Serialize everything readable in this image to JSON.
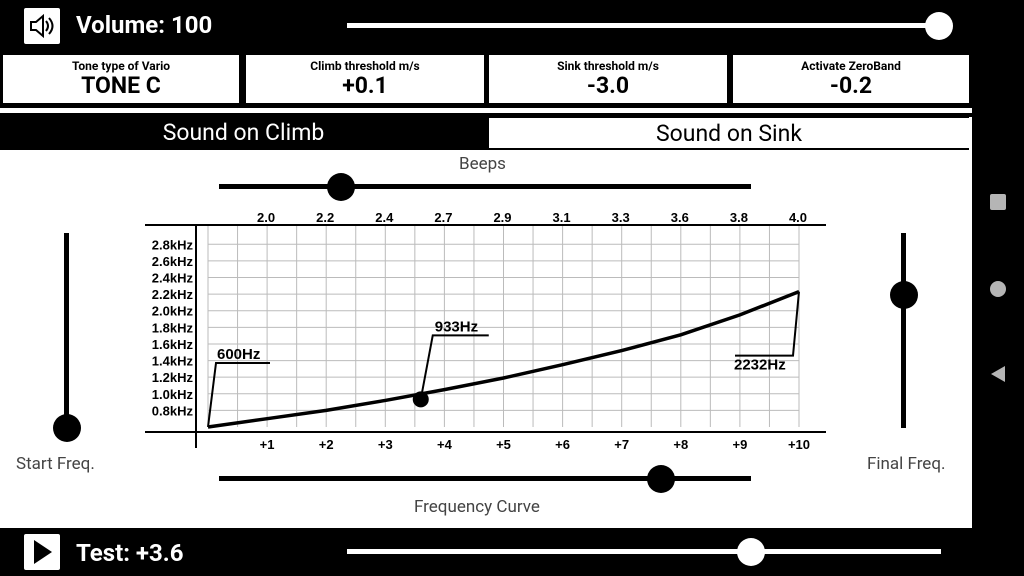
{
  "volume": {
    "label": "Volume: 100",
    "value": 100,
    "max": 100
  },
  "params": [
    {
      "label": "Tone type of Vario",
      "value": "TONE C"
    },
    {
      "label": "Climb threshold m/s",
      "value": "+0.1"
    },
    {
      "label": "Sink threshold m/s",
      "value": "-3.0"
    },
    {
      "label": "Activate ZeroBand",
      "value": "-0.2"
    }
  ],
  "tabs": {
    "climb": "Sound on Climb",
    "sink": "Sound on Sink"
  },
  "beeps": {
    "label": "Beeps",
    "position": 0.23
  },
  "frequency_curve": {
    "label": "Frequency Curve",
    "position": 0.83
  },
  "start_freq": {
    "label": "Start Freq.",
    "position": 0.0
  },
  "final_freq": {
    "label": "Final Freq.",
    "position": 0.68
  },
  "test": {
    "label": "Test: +3.6",
    "position": 0.68
  },
  "chart_data": {
    "type": "line",
    "top_ticks": [
      "2.0",
      "2.2",
      "2.4",
      "2.7",
      "2.9",
      "3.1",
      "3.3",
      "3.6",
      "3.8",
      "4.0"
    ],
    "bottom_ticks": [
      "+1",
      "+2",
      "+3",
      "+4",
      "+5",
      "+6",
      "+7",
      "+8",
      "+9",
      "+10"
    ],
    "y_ticks": [
      "0.8kHz",
      "1.0kHz",
      "1.2kHz",
      "1.4kHz",
      "1.6kHz",
      "1.8kHz",
      "2.0kHz",
      "2.2kHz",
      "2.4kHz",
      "2.6kHz",
      "2.8kHz"
    ],
    "xlim": [
      0,
      10
    ],
    "ylim": [
      0.6,
      2.9
    ],
    "curve": {
      "start_hz": 600,
      "end_hz": 2232,
      "x": [
        0,
        1,
        2,
        3,
        4,
        5,
        6,
        7,
        8,
        9,
        10
      ],
      "y_khz": [
        0.6,
        0.7,
        0.8,
        0.92,
        1.05,
        1.19,
        1.35,
        1.52,
        1.71,
        1.95,
        2.23
      ]
    },
    "marker": {
      "x": 3.6,
      "label": "933Hz",
      "y_khz": 0.933
    },
    "start_label": "600Hz",
    "end_label": "2232Hz",
    "grid": true
  }
}
